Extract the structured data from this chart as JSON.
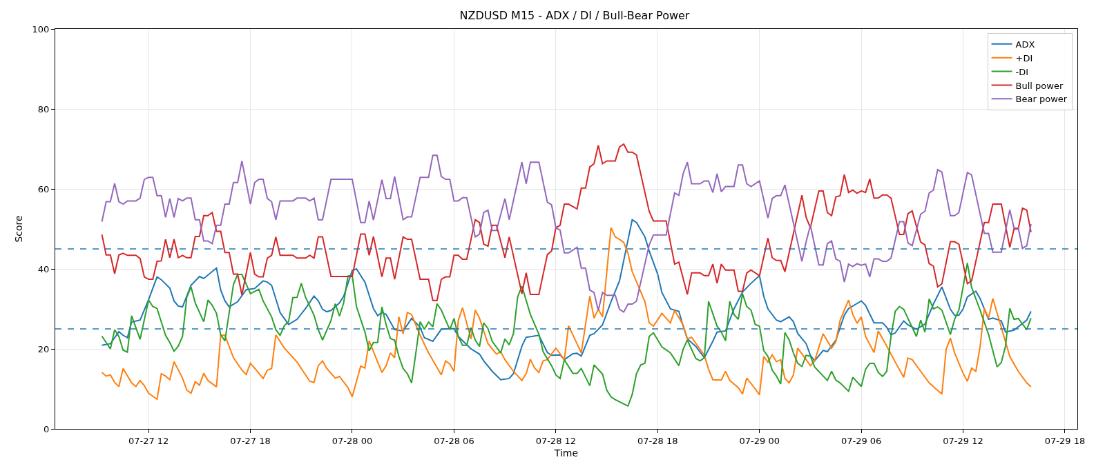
{
  "chart_data": {
    "type": "line",
    "title": "NZDUSD M15 - ADX / DI / Bull-Bear Power",
    "xlabel": "Time",
    "ylabel": "Score",
    "xlim": [
      "--07-27T06:30",
      "--07-29T18:44"
    ],
    "xticks": [
      {
        "value": "--07-27T12:00",
        "label": "07-27 12"
      },
      {
        "value": "--07-27T18:00",
        "label": "07-27 18"
      },
      {
        "value": "--07-28T00:00",
        "label": "07-28 00"
      },
      {
        "value": "--07-28T06:00",
        "label": "07-28 06"
      },
      {
        "value": "--07-28T12:00",
        "label": "07-28 12"
      },
      {
        "value": "--07-28T18:00",
        "label": "07-28 18"
      },
      {
        "value": "--07-29T00:00",
        "label": "07-29 00"
      },
      {
        "value": "--07-29T06:00",
        "label": "07-29 06"
      },
      {
        "value": "--07-29T12:00",
        "label": "07-29 12"
      },
      {
        "value": "--07-29T18:00",
        "label": "07-29 18"
      }
    ],
    "ylim": [
      0,
      100
    ],
    "yticks": [
      0,
      20,
      40,
      60,
      80,
      100
    ],
    "grid": true,
    "legend": "top right",
    "ref_lines": [
      {
        "axis": "y",
        "value": 45,
        "color": "#1f77b4",
        "line_style": "dashed"
      },
      {
        "axis": "y",
        "value": 25,
        "color": "#1f77b4",
        "line_style": "dashed"
      }
    ],
    "series": [
      {
        "name": "ADX",
        "color": "#1f77b4",
        "x": [
          "--07-27T09:15",
          "--07-27T09:45",
          "--07-27T10:15",
          "--07-27T10:30",
          "--07-27T10:45",
          "--07-27T11:00",
          "--07-27T11:30",
          "--07-27T12:00",
          "--07-27T12:30",
          "--07-27T12:45",
          "--07-27T13:15",
          "--07-27T13:30",
          "--07-27T13:45",
          "--07-27T14:00",
          "--07-27T14:30",
          "--07-27T15:00",
          "--07-27T15:15",
          "--07-27T16:00",
          "--07-27T16:15",
          "--07-27T16:30",
          "--07-27T16:45",
          "--07-27T17:15",
          "--07-27T17:45",
          "--07-27T18:15",
          "--07-27T18:45",
          "--07-27T19:00",
          "--07-27T19:15",
          "--07-27T19:45",
          "--07-27T20:15",
          "--07-27T20:45",
          "--07-27T21:15",
          "--07-27T21:45",
          "--07-27T22:00",
          "--07-27T22:15",
          "--07-27T22:30",
          "--07-27T22:45",
          "--07-27T23:15",
          "--07-27T23:30",
          "--07-28T00:00",
          "--07-28T00:15",
          "--07-28T00:45",
          "--07-28T01:15",
          "--07-28T01:30",
          "--07-28T01:45",
          "--07-28T02:00",
          "--07-28T02:30",
          "--07-28T03:00",
          "--07-28T03:30",
          "--07-28T04:00",
          "--07-28T04:15",
          "--07-28T04:45",
          "--07-28T05:15",
          "--07-28T06:00",
          "--07-28T06:15",
          "--07-28T07:00",
          "--07-28T07:30",
          "--07-28T07:45",
          "--07-28T08:15",
          "--07-28T08:45",
          "--07-28T09:15",
          "--07-28T09:30",
          "--07-28T10:00",
          "--07-28T10:15",
          "--07-28T11:00",
          "--07-28T11:30",
          "--07-28T11:45",
          "--07-28T12:15",
          "--07-28T12:30",
          "--07-28T13:00",
          "--07-28T13:15",
          "--07-28T13:30",
          "--07-28T14:00",
          "--07-28T14:15",
          "--07-28T14:45",
          "--07-28T15:15",
          "--07-28T15:45",
          "--07-28T16:30",
          "--07-28T16:45",
          "--07-28T17:15",
          "--07-28T17:30",
          "--07-28T18:00",
          "--07-28T18:15",
          "--07-28T18:45",
          "--07-28T19:15",
          "--07-28T19:30",
          "--07-28T19:45",
          "--07-28T20:15",
          "--07-28T20:45",
          "--07-28T21:15",
          "--07-28T21:30",
          "--07-28T22:00",
          "--07-28T22:30",
          "--07-28T23:00",
          "--07-28T23:30",
          "--07-29T00:00",
          "--07-29T00:15",
          "--07-29T00:30",
          "--07-29T01:00",
          "--07-29T01:15",
          "--07-29T01:45",
          "--07-29T02:00",
          "--07-29T02:15",
          "--07-29T02:45",
          "--07-29T03:00",
          "--07-29T03:15",
          "--07-29T03:45",
          "--07-29T04:00",
          "--07-29T04:30",
          "--07-29T05:00",
          "--07-29T05:15",
          "--07-29T06:00",
          "--07-29T06:15",
          "--07-29T06:45",
          "--07-29T07:15",
          "--07-29T07:30",
          "--07-29T07:45",
          "--07-29T08:00",
          "--07-29T08:30",
          "--07-29T08:45",
          "--07-29T09:15",
          "--07-29T09:45",
          "--07-29T10:15",
          "--07-29T10:45",
          "--07-29T11:15",
          "--07-29T11:30",
          "--07-29T11:45",
          "--07-29T12:00",
          "--07-29T12:15",
          "--07-29T12:45",
          "--07-29T13:00",
          "--07-29T13:30",
          "--07-29T13:45",
          "--07-29T14:15",
          "--07-29T14:30",
          "--07-29T15:00",
          "--07-29T15:45",
          "--07-29T16:00"
        ],
        "values": [
          20.9,
          21.3,
          24.3,
          23.4,
          22.8,
          26.7,
          27.2,
          32.3,
          38.0,
          37.3,
          35.2,
          32.0,
          30.7,
          30.5,
          35.9,
          38.1,
          37.6,
          40.2,
          34.7,
          32.0,
          30.5,
          31.8,
          34.8,
          35.1,
          37.0,
          36.7,
          35.9,
          29.1,
          26.1,
          27.4,
          30.1,
          33.2,
          32.0,
          29.9,
          29.3,
          29.6,
          31.5,
          33.2,
          39.6,
          40.0,
          36.7,
          30.1,
          28.3,
          29.1,
          28.6,
          24.8,
          24.5,
          27.6,
          25.4,
          22.8,
          21.9,
          24.9,
          25.1,
          23.1,
          20.0,
          18.7,
          17.0,
          14.4,
          12.3,
          12.6,
          13.8,
          20.7,
          22.9,
          23.4,
          19.1,
          18.4,
          18.5,
          17.3,
          18.8,
          18.9,
          18.2,
          23.4,
          23.8,
          26.0,
          31.8,
          37.0,
          52.3,
          51.6,
          48.0,
          44.5,
          38.7,
          34.1,
          30.0,
          29.4,
          25.7,
          22.5,
          20.6,
          17.8,
          21.9,
          24.2,
          24.5,
          30.0,
          34.2,
          36.4,
          38.3,
          33.2,
          30.0,
          27.2,
          26.8,
          28.0,
          26.8,
          23.9,
          21.3,
          18.4,
          17.0,
          19.6,
          19.3,
          22.2,
          28.4,
          30.1,
          32.0,
          30.9,
          26.5,
          26.5,
          25.4,
          23.5,
          24.0,
          27.0,
          26.0,
          24.9,
          26.2,
          31.2,
          35.5,
          29.9,
          28.4,
          28.4,
          30.0,
          33.0,
          34.4,
          32.6,
          27.4,
          27.7,
          27.0,
          24.2,
          24.7,
          27.2,
          29.4
        ]
      },
      {
        "name": "+DI",
        "color": "#ff7f0e",
        "x": [
          "--07-27T09:15",
          "--07-27T09:30",
          "--07-27T09:45",
          "--07-27T10:00",
          "--07-27T10:15",
          "--07-27T10:30",
          "--07-27T11:00",
          "--07-27T11:15",
          "--07-27T11:30",
          "--07-27T11:45",
          "--07-27T12:00",
          "--07-27T12:30",
          "--07-27T12:45",
          "--07-27T13:00",
          "--07-27T13:15",
          "--07-27T13:30",
          "--07-27T14:00",
          "--07-27T14:15",
          "--07-27T14:30",
          "--07-27T14:45",
          "--07-27T15:00",
          "--07-27T15:15",
          "--07-27T15:30",
          "--07-27T16:00",
          "--07-27T16:15",
          "--07-27T16:30",
          "--07-27T17:00",
          "--07-27T17:30",
          "--07-27T17:45",
          "--07-27T18:00",
          "--07-27T18:15",
          "--07-27T18:45",
          "--07-27T19:00",
          "--07-27T19:15",
          "--07-27T19:30",
          "--07-27T20:00",
          "--07-27T20:45",
          "--07-27T21:15",
          "--07-27T21:30",
          "--07-27T21:45",
          "--07-27T22:00",
          "--07-27T22:15",
          "--07-27T22:30",
          "--07-27T23:00",
          "--07-27T23:15",
          "--07-27T23:45",
          "--07-28T00:00",
          "--07-28T00:30",
          "--07-28T00:45",
          "--07-28T01:00",
          "--07-28T01:30",
          "--07-28T01:45",
          "--07-28T02:00",
          "--07-28T02:15",
          "--07-28T02:30",
          "--07-28T02:45",
          "--07-28T03:00",
          "--07-28T03:15",
          "--07-28T03:30",
          "--07-28T04:00",
          "--07-28T04:30",
          "--07-28T05:15",
          "--07-28T05:30",
          "--07-28T05:45",
          "--07-28T06:00",
          "--07-28T06:15",
          "--07-28T06:30",
          "--07-28T07:00",
          "--07-28T07:15",
          "--07-28T07:30",
          "--07-28T08:00",
          "--07-28T08:30",
          "--07-28T08:45",
          "--07-28T09:00",
          "--07-28T09:30",
          "--07-28T10:00",
          "--07-28T10:15",
          "--07-28T10:30",
          "--07-28T10:45",
          "--07-28T11:00",
          "--07-28T11:15",
          "--07-28T11:30",
          "--07-28T12:00",
          "--07-28T12:30",
          "--07-28T12:45",
          "--07-28T13:30",
          "--07-28T14:00",
          "--07-28T14:15",
          "--07-28T14:30",
          "--07-28T14:45",
          "--07-28T15:15",
          "--07-28T15:30",
          "--07-28T15:45",
          "--07-28T16:00",
          "--07-28T16:15",
          "--07-28T16:30",
          "--07-28T17:15",
          "--07-28T17:30",
          "--07-28T17:45",
          "--07-28T18:15",
          "--07-28T18:45",
          "--07-28T19:00",
          "--07-28T19:30",
          "--07-28T19:45",
          "--07-28T20:00",
          "--07-28T20:30",
          "--07-28T20:45",
          "--07-28T21:00",
          "--07-28T21:15",
          "--07-28T21:45",
          "--07-28T22:00",
          "--07-28T22:15",
          "--07-28T22:45",
          "--07-28T23:00",
          "--07-28T23:15",
          "--07-28T23:45",
          "--07-29T00:00",
          "--07-29T00:15",
          "--07-29T00:30",
          "--07-29T00:45",
          "--07-29T01:00",
          "--07-29T01:15",
          "--07-29T01:30",
          "--07-29T01:45",
          "--07-29T02:00",
          "--07-29T02:15",
          "--07-29T02:45",
          "--07-29T03:00",
          "--07-29T03:15",
          "--07-29T03:45",
          "--07-29T04:15",
          "--07-29T04:30",
          "--07-29T04:45",
          "--07-29T05:15",
          "--07-29T05:30",
          "--07-29T05:45",
          "--07-29T06:00",
          "--07-29T06:15",
          "--07-29T06:45",
          "--07-29T07:00",
          "--07-29T07:30",
          "--07-29T08:00",
          "--07-29T08:30",
          "--07-29T08:45",
          "--07-29T09:00",
          "--07-29T09:30",
          "--07-29T10:00",
          "--07-29T10:30",
          "--07-29T10:45",
          "--07-29T11:00",
          "--07-29T11:15",
          "--07-29T11:30",
          "--07-29T12:00",
          "--07-29T12:15",
          "--07-29T12:30",
          "--07-29T12:45",
          "--07-29T13:00",
          "--07-29T13:15",
          "--07-29T13:30",
          "--07-29T13:45",
          "--07-29T14:15",
          "--07-29T14:45",
          "--07-29T15:15",
          "--07-29T15:45",
          "--07-29T16:00"
        ],
        "values": [
          14.1,
          13.2,
          13.5,
          11.6,
          10.6,
          15.1,
          11.5,
          10.6,
          12.1,
          10.8,
          8.9,
          7.4,
          13.8,
          13.2,
          12.3,
          16.8,
          12.7,
          9.7,
          8.9,
          11.8,
          10.9,
          13.9,
          12.1,
          10.5,
          23.4,
          23.4,
          17.8,
          14.7,
          13.6,
          16.4,
          15.2,
          12.6,
          14.7,
          15.1,
          23.5,
          20.2,
          16.7,
          13.5,
          11.9,
          11.6,
          15.8,
          17.0,
          15.1,
          12.7,
          13.1,
          10.3,
          8.0,
          15.7,
          15.2,
          22.0,
          16.7,
          14.1,
          15.8,
          19.0,
          17.8,
          28.0,
          23.8,
          29.1,
          28.6,
          23.4,
          19.0,
          13.5,
          17.0,
          16.2,
          14.4,
          27.1,
          30.3,
          22.5,
          29.7,
          27.7,
          21.3,
          18.7,
          19.3,
          17.3,
          14.4,
          12.1,
          13.8,
          17.4,
          15.2,
          14.1,
          17.0,
          17.3,
          20.2,
          17.3,
          25.8,
          19.0,
          33.2,
          27.7,
          29.9,
          28.0,
          50.3,
          48.0,
          47.4,
          46.6,
          43.9,
          39.3,
          31.8,
          26.5,
          25.7,
          28.9,
          26.5,
          29.6,
          26.0,
          22.5,
          22.9,
          19.9,
          18.4,
          14.9,
          12.3,
          12.2,
          14.4,
          12.1,
          10.3,
          8.7,
          12.7,
          10.0,
          8.5,
          18.1,
          16.7,
          18.5,
          16.8,
          17.3,
          12.6,
          11.5,
          13.5,
          20.2,
          17.3,
          15.8,
          17.0,
          23.8,
          20.2,
          21.8,
          27.1,
          32.2,
          28.6,
          26.4,
          28.0,
          23.1,
          19.1,
          24.5,
          20.7,
          16.7,
          12.9,
          17.7,
          17.3,
          14.4,
          11.5,
          9.6,
          8.7,
          19.9,
          22.7,
          19.0,
          13.9,
          11.9,
          15.2,
          14.4,
          20.5,
          30.1,
          27.7,
          32.6,
          25.4,
          18.1,
          14.4,
          11.5,
          10.5
        ]
      },
      {
        "name": "-DI",
        "color": "#2ca02c",
        "x": [
          "--07-27T09:15",
          "--07-27T09:45",
          "--07-27T10:00",
          "--07-27T10:15",
          "--07-27T10:30",
          "--07-27T10:45",
          "--07-27T11:00",
          "--07-27T11:30",
          "--07-27T12:00",
          "--07-27T12:15",
          "--07-27T12:30",
          "--07-27T13:00",
          "--07-27T13:15",
          "--07-27T13:30",
          "--07-27T13:45",
          "--07-27T14:00",
          "--07-27T14:15",
          "--07-27T14:30",
          "--07-27T14:45",
          "--07-27T15:15",
          "--07-27T15:30",
          "--07-27T15:45",
          "--07-27T16:00",
          "--07-27T16:15",
          "--07-27T16:30",
          "--07-27T17:00",
          "--07-27T17:15",
          "--07-27T17:30",
          "--07-27T18:00",
          "--07-27T18:30",
          "--07-27T18:45",
          "--07-27T19:15",
          "--07-27T19:30",
          "--07-27T19:45",
          "--07-27T20:00",
          "--07-27T20:15",
          "--07-27T20:30",
          "--07-27T20:45",
          "--07-27T21:00",
          "--07-27T21:15",
          "--07-27T21:45",
          "--07-27T22:00",
          "--07-27T22:15",
          "--07-27T22:45",
          "--07-27T23:00",
          "--07-27T23:15",
          "--07-27T23:30",
          "--07-27T23:45",
          "--07-28T00:00",
          "--07-28T00:15",
          "--07-28T00:45",
          "--07-28T01:00",
          "--07-28T01:15",
          "--07-28T01:30",
          "--07-28T01:45",
          "--07-28T02:00",
          "--07-28T02:15",
          "--07-28T02:30",
          "--07-28T02:45",
          "--07-28T03:00",
          "--07-28T03:15",
          "--07-28T03:30",
          "--07-28T03:45",
          "--07-28T04:00",
          "--07-28T04:15",
          "--07-28T04:30",
          "--07-28T04:45",
          "--07-28T05:00",
          "--07-28T05:15",
          "--07-28T05:45",
          "--07-28T06:00",
          "--07-28T06:15",
          "--07-28T06:30",
          "--07-28T06:45",
          "--07-28T07:00",
          "--07-28T07:15",
          "--07-28T07:30",
          "--07-28T07:45",
          "--07-28T08:00",
          "--07-28T08:15",
          "--07-28T08:45",
          "--07-28T09:00",
          "--07-28T09:15",
          "--07-28T09:30",
          "--07-28T09:45",
          "--07-28T10:00",
          "--07-28T10:30",
          "--07-28T11:00",
          "--07-28T11:15",
          "--07-28T11:45",
          "--07-28T12:00",
          "--07-28T12:15",
          "--07-28T12:30",
          "--07-28T13:00",
          "--07-28T13:15",
          "--07-28T13:30",
          "--07-28T14:00",
          "--07-28T14:15",
          "--07-28T14:45",
          "--07-28T15:00",
          "--07-28T15:15",
          "--07-28T15:30",
          "--07-28T16:15",
          "--07-28T16:30",
          "--07-28T16:45",
          "--07-28T17:00",
          "--07-28T17:15",
          "--07-28T17:30",
          "--07-28T17:45",
          "--07-28T18:15",
          "--07-28T18:45",
          "--07-28T19:15",
          "--07-28T19:30",
          "--07-28T19:45",
          "--07-28T20:15",
          "--07-28T20:30",
          "--07-28T20:45",
          "--07-28T21:00",
          "--07-28T21:30",
          "--07-28T21:45",
          "--07-28T22:00",
          "--07-28T22:15",
          "--07-28T22:30",
          "--07-28T22:45",
          "--07-28T23:00",
          "--07-28T23:15",
          "--07-28T23:30",
          "--07-28T23:45",
          "--07-29T00:00",
          "--07-29T00:15",
          "--07-29T00:30",
          "--07-29T00:45",
          "--07-29T01:00",
          "--07-29T01:15",
          "--07-29T01:30",
          "--07-29T01:45",
          "--07-29T02:00",
          "--07-29T02:15",
          "--07-29T02:30",
          "--07-29T02:45",
          "--07-29T03:00",
          "--07-29T03:15",
          "--07-29T04:00",
          "--07-29T04:15",
          "--07-29T04:30",
          "--07-29T04:45",
          "--07-29T05:15",
          "--07-29T05:30",
          "--07-29T06:00",
          "--07-29T06:15",
          "--07-29T06:30",
          "--07-29T06:45",
          "--07-29T07:00",
          "--07-29T07:15",
          "--07-29T07:30",
          "--07-29T07:45",
          "--07-29T08:00",
          "--07-29T08:15",
          "--07-29T08:30",
          "--07-29T09:15",
          "--07-29T09:30",
          "--07-29T09:45",
          "--07-29T10:00",
          "--07-29T10:15",
          "--07-29T10:30",
          "--07-29T10:45",
          "--07-29T11:15",
          "--07-29T11:30",
          "--07-29T11:45",
          "--07-29T12:00",
          "--07-29T12:15",
          "--07-29T12:30",
          "--07-29T13:00",
          "--07-29T13:30",
          "--07-29T14:00",
          "--07-29T14:15",
          "--07-29T14:30",
          "--07-29T14:45",
          "--07-29T15:00",
          "--07-29T15:15",
          "--07-29T15:45",
          "--07-29T16:00"
        ],
        "values": [
          23.2,
          20.0,
          24.8,
          23.1,
          19.7,
          19.2,
          28.3,
          22.4,
          32.2,
          30.6,
          30.1,
          23.4,
          21.6,
          19.4,
          20.7,
          23.1,
          32.9,
          35.5,
          31.5,
          26.8,
          32.2,
          30.9,
          28.9,
          23.5,
          22.0,
          36.1,
          38.6,
          38.6,
          33.8,
          34.9,
          32.0,
          28.0,
          24.8,
          23.4,
          25.8,
          26.8,
          32.8,
          32.9,
          36.4,
          32.9,
          28.4,
          24.8,
          22.2,
          27.1,
          31.3,
          28.2,
          31.6,
          38.2,
          38.4,
          30.6,
          24.2,
          19.5,
          21.6,
          21.6,
          30.5,
          26.0,
          22.6,
          22.2,
          18.1,
          15.1,
          13.8,
          11.5,
          19.0,
          26.8,
          24.9,
          26.7,
          25.5,
          31.3,
          29.7,
          24.8,
          27.6,
          23.1,
          20.9,
          20.9,
          25.3,
          22.2,
          20.6,
          26.5,
          25.1,
          21.9,
          19.0,
          22.5,
          21.0,
          23.8,
          33.0,
          35.7,
          28.6,
          23.7,
          19.3,
          15.8,
          13.5,
          12.6,
          17.3,
          13.9,
          13.9,
          15.1,
          10.8,
          16.0,
          13.7,
          9.7,
          8.0,
          7.3,
          5.7,
          8.6,
          13.8,
          16.0,
          16.4,
          23.1,
          24.0,
          20.5,
          19.0,
          15.8,
          19.9,
          22.2,
          17.6,
          17.0,
          17.8,
          31.9,
          25.7,
          24.2,
          22.0,
          31.9,
          28.6,
          27.4,
          33.8,
          30.6,
          29.7,
          26.1,
          25.7,
          19.6,
          18.1,
          14.7,
          13.2,
          11.2,
          24.1,
          22.2,
          19.0,
          16.4,
          15.6,
          18.4,
          18.2,
          15.5,
          12.1,
          14.4,
          12.2,
          11.5,
          9.4,
          12.9,
          10.6,
          14.9,
          16.4,
          16.4,
          14.1,
          13.1,
          14.4,
          23.1,
          29.4,
          30.6,
          29.9,
          23.1,
          27.2,
          24.2,
          32.5,
          30.0,
          30.5,
          29.7,
          23.6,
          27.4,
          29.7,
          35.5,
          41.5,
          35.4,
          29.7,
          23.6,
          15.5,
          16.6,
          20.7,
          30.1,
          27.4,
          27.6,
          24.8,
          27.7
        ]
      },
      {
        "name": "Bull power",
        "color": "#d62728",
        "x": [
          "--07-27T09:15",
          "--07-27T09:30",
          "--07-27T09:45",
          "--07-27T10:00",
          "--07-27T10:15",
          "--07-27T10:30",
          "--07-27T10:45",
          "--07-27T11:15",
          "--07-27T11:30",
          "--07-27T11:45",
          "--07-27T12:00",
          "--07-27T12:15",
          "--07-27T12:30",
          "--07-27T12:45",
          "--07-27T13:00",
          "--07-27T13:15",
          "--07-27T13:30",
          "--07-27T13:45",
          "--07-27T14:00",
          "--07-27T14:15",
          "--07-27T14:30",
          "--07-27T14:45",
          "--07-27T15:00",
          "--07-27T15:15",
          "--07-27T15:30",
          "--07-27T15:45",
          "--07-27T16:00",
          "--07-27T16:15",
          "--07-27T16:30",
          "--07-27T16:45",
          "--07-27T17:00",
          "--07-27T17:15",
          "--07-27T17:30",
          "--07-27T18:00",
          "--07-27T18:15",
          "--07-27T18:30",
          "--07-27T18:45",
          "--07-27T19:00",
          "--07-27T19:15",
          "--07-27T19:30",
          "--07-27T19:45",
          "--07-27T20:30",
          "--07-27T20:45",
          "--07-27T21:15",
          "--07-27T21:30",
          "--07-27T21:45",
          "--07-27T22:00",
          "--07-27T22:15",
          "--07-27T22:45",
          "--07-28T00:00",
          "--07-28T00:30",
          "--07-28T00:45",
          "--07-28T01:00",
          "--07-28T01:15",
          "--07-28T01:45",
          "--07-28T02:00",
          "--07-28T02:15",
          "--07-28T02:30",
          "--07-28T03:00",
          "--07-28T03:15",
          "--07-28T03:30",
          "--07-28T04:00",
          "--07-28T04:30",
          "--07-28T04:45",
          "--07-28T05:00",
          "--07-28T05:15",
          "--07-28T05:30",
          "--07-28T05:45",
          "--07-28T06:00",
          "--07-28T06:15",
          "--07-28T06:30",
          "--07-28T06:45",
          "--07-28T07:15",
          "--07-28T07:30",
          "--07-28T07:45",
          "--07-28T08:00",
          "--07-28T08:15",
          "--07-28T08:30",
          "--07-28T09:00",
          "--07-28T09:15",
          "--07-28T10:00",
          "--07-28T10:15",
          "--07-28T10:30",
          "--07-28T11:00",
          "--07-28T11:30",
          "--07-28T11:45",
          "--07-28T12:00",
          "--07-28T12:15",
          "--07-28T12:30",
          "--07-28T12:45",
          "--07-28T13:15",
          "--07-28T13:30",
          "--07-28T13:45",
          "--07-28T14:00",
          "--07-28T14:15",
          "--07-28T14:30",
          "--07-28T14:45",
          "--07-28T15:00",
          "--07-28T15:30",
          "--07-28T15:45",
          "--07-28T16:00",
          "--07-28T16:15",
          "--07-28T16:30",
          "--07-28T16:45",
          "--07-28T17:30",
          "--07-28T17:45",
          "--07-28T18:30",
          "--07-28T19:00",
          "--07-28T19:15",
          "--07-28T19:45",
          "--07-28T20:00",
          "--07-28T20:30",
          "--07-28T20:45",
          "--07-28T21:00",
          "--07-28T21:15",
          "--07-28T21:30",
          "--07-28T21:45",
          "--07-28T22:00",
          "--07-28T22:30",
          "--07-28T22:45",
          "--07-28T23:00",
          "--07-28T23:15",
          "--07-28T23:30",
          "--07-29T00:00",
          "--07-29T00:30",
          "--07-29T00:45",
          "--07-29T01:00",
          "--07-29T01:15",
          "--07-29T01:30",
          "--07-29T02:30",
          "--07-29T02:45",
          "--07-29T03:00",
          "--07-29T03:30",
          "--07-29T03:45",
          "--07-29T04:00",
          "--07-29T04:15",
          "--07-29T04:30",
          "--07-29T04:45",
          "--07-29T05:00",
          "--07-29T05:15",
          "--07-29T05:30",
          "--07-29T05:45",
          "--07-29T06:00",
          "--07-29T06:15",
          "--07-29T06:30",
          "--07-29T06:45",
          "--07-29T07:00",
          "--07-29T07:15",
          "--07-29T07:30",
          "--07-29T07:45",
          "--07-29T08:15",
          "--07-29T08:30",
          "--07-29T08:45",
          "--07-29T09:00",
          "--07-29T09:30",
          "--07-29T09:45",
          "--07-29T10:00",
          "--07-29T10:15",
          "--07-29T10:30",
          "--07-29T10:45",
          "--07-29T11:15",
          "--07-29T11:30",
          "--07-29T11:45",
          "--07-29T12:15",
          "--07-29T12:30",
          "--07-29T13:15",
          "--07-29T13:30",
          "--07-29T13:45",
          "--07-29T14:15",
          "--07-29T14:45",
          "--07-29T15:00",
          "--07-29T15:15",
          "--07-29T15:30",
          "--07-29T15:45",
          "--07-29T16:00"
        ],
        "values": [
          48.6,
          43.5,
          43.5,
          38.8,
          43.5,
          43.9,
          43.4,
          43.4,
          42.6,
          38.0,
          37.4,
          37.4,
          41.9,
          42.0,
          47.4,
          42.8,
          47.4,
          42.8,
          43.4,
          42.8,
          42.8,
          48.1,
          48.1,
          53.3,
          53.3,
          54.1,
          49.4,
          49.4,
          44.1,
          44.1,
          38.7,
          38.7,
          33.5,
          44.1,
          38.7,
          38.0,
          38.0,
          42.7,
          43.4,
          48.0,
          43.4,
          43.4,
          42.7,
          42.7,
          43.4,
          42.7,
          48.0,
          48.0,
          38.1,
          38.1,
          48.7,
          48.7,
          43.4,
          48.1,
          38.0,
          42.7,
          42.7,
          37.4,
          48.0,
          47.4,
          47.4,
          37.4,
          37.4,
          32.1,
          32.1,
          37.4,
          38.0,
          38.0,
          43.4,
          43.4,
          42.4,
          42.4,
          52.3,
          51.6,
          46.2,
          45.7,
          50.9,
          50.9,
          42.8,
          48.0,
          33.8,
          39.0,
          33.6,
          33.6,
          43.6,
          44.5,
          50.3,
          50.9,
          56.2,
          56.2,
          55.0,
          60.2,
          60.2,
          65.5,
          66.3,
          70.9,
          66.3,
          67.0,
          67.0,
          70.5,
          71.2,
          69.2,
          69.2,
          68.5,
          54.4,
          52.0,
          52.0,
          41.2,
          41.7,
          33.6,
          39.0,
          39.0,
          38.3,
          38.3,
          41.2,
          36.4,
          41.2,
          39.7,
          39.7,
          34.4,
          34.4,
          39.0,
          39.7,
          38.3,
          47.7,
          42.8,
          42.1,
          42.1,
          39.3,
          58.4,
          52.9,
          50.3,
          59.5,
          59.5,
          54.1,
          53.3,
          58.0,
          58.3,
          63.6,
          59.1,
          59.7,
          58.9,
          59.5,
          59.1,
          62.5,
          57.7,
          57.7,
          58.5,
          58.5,
          57.7,
          48.6,
          48.6,
          53.8,
          54.5,
          46.7,
          46.0,
          41.3,
          40.7,
          35.5,
          36.3,
          46.8,
          46.8,
          46.2,
          36.3,
          37.0,
          51.6,
          51.6,
          56.2,
          56.2,
          45.4,
          50.0,
          50.0,
          55.2,
          54.7,
          49.2
        ]
      },
      {
        "name": "Bear power",
        "color": "#9467bd",
        "x": [
          "--07-27T09:15",
          "--07-27T09:30",
          "--07-27T09:45",
          "--07-27T10:00",
          "--07-27T10:15",
          "--07-27T10:30",
          "--07-27T10:45",
          "--07-27T11:15",
          "--07-27T11:30",
          "--07-27T11:45",
          "--07-27T12:00",
          "--07-27T12:15",
          "--07-27T12:30",
          "--07-27T12:45",
          "--07-27T13:00",
          "--07-27T13:15",
          "--07-27T13:30",
          "--07-27T13:45",
          "--07-27T14:00",
          "--07-27T14:15",
          "--07-27T14:30",
          "--07-27T14:45",
          "--07-27T15:00",
          "--07-27T15:15",
          "--07-27T15:30",
          "--07-27T15:45",
          "--07-27T16:00",
          "--07-27T16:15",
          "--07-27T16:30",
          "--07-27T16:45",
          "--07-27T17:00",
          "--07-27T17:15",
          "--07-27T17:30",
          "--07-27T18:00",
          "--07-27T18:15",
          "--07-27T18:30",
          "--07-27T18:45",
          "--07-27T19:00",
          "--07-27T19:15",
          "--07-27T19:30",
          "--07-27T19:45",
          "--07-27T20:30",
          "--07-27T20:45",
          "--07-27T21:15",
          "--07-27T21:30",
          "--07-27T21:45",
          "--07-27T22:00",
          "--07-27T22:15",
          "--07-27T22:45",
          "--07-28T00:00",
          "--07-28T00:30",
          "--07-28T00:45",
          "--07-28T01:00",
          "--07-28T01:15",
          "--07-28T01:45",
          "--07-28T02:00",
          "--07-28T02:15",
          "--07-28T02:30",
          "--07-28T03:00",
          "--07-28T03:15",
          "--07-28T03:30",
          "--07-28T04:00",
          "--07-28T04:30",
          "--07-28T04:45",
          "--07-28T05:00",
          "--07-28T05:15",
          "--07-28T05:30",
          "--07-28T05:45",
          "--07-28T06:00",
          "--07-28T06:15",
          "--07-28T06:30",
          "--07-28T06:45",
          "--07-28T07:15",
          "--07-28T07:30",
          "--07-28T07:45",
          "--07-28T08:00",
          "--07-28T08:15",
          "--07-28T08:30",
          "--07-28T09:00",
          "--07-28T09:15",
          "--07-28T10:00",
          "--07-28T10:15",
          "--07-28T10:30",
          "--07-28T11:00",
          "--07-28T11:30",
          "--07-28T11:45",
          "--07-28T12:00",
          "--07-28T12:15",
          "--07-28T12:30",
          "--07-28T12:45",
          "--07-28T13:15",
          "--07-28T13:30",
          "--07-28T13:45",
          "--07-28T14:00",
          "--07-28T14:15",
          "--07-28T14:30",
          "--07-28T14:45",
          "--07-28T15:00",
          "--07-28T15:30",
          "--07-28T15:45",
          "--07-28T16:00",
          "--07-28T16:15",
          "--07-28T16:30",
          "--07-28T16:45",
          "--07-28T17:30",
          "--07-28T17:45",
          "--07-28T18:30",
          "--07-28T19:00",
          "--07-28T19:15",
          "--07-28T19:30",
          "--07-28T19:45",
          "--07-28T20:00",
          "--07-28T20:30",
          "--07-28T20:45",
          "--07-28T21:00",
          "--07-28T21:15",
          "--07-28T21:30",
          "--07-28T21:45",
          "--07-28T22:00",
          "--07-28T22:30",
          "--07-28T22:45",
          "--07-28T23:00",
          "--07-28T23:15",
          "--07-28T23:30",
          "--07-29T00:00",
          "--07-29T00:30",
          "--07-29T00:45",
          "--07-29T01:00",
          "--07-29T01:15",
          "--07-29T01:30",
          "--07-29T02:30",
          "--07-29T02:45",
          "--07-29T03:00",
          "--07-29T03:30",
          "--07-29T03:45",
          "--07-29T04:00",
          "--07-29T04:15",
          "--07-29T04:30",
          "--07-29T04:45",
          "--07-29T05:00",
          "--07-29T05:15",
          "--07-29T05:30",
          "--07-29T05:45",
          "--07-29T06:00",
          "--07-29T06:15",
          "--07-29T06:30",
          "--07-29T06:45",
          "--07-29T07:00",
          "--07-29T07:15",
          "--07-29T07:30",
          "--07-29T07:45",
          "--07-29T08:15",
          "--07-29T08:30",
          "--07-29T08:45",
          "--07-29T09:00",
          "--07-29T09:30",
          "--07-29T09:45",
          "--07-29T10:00",
          "--07-29T10:15",
          "--07-29T10:30",
          "--07-29T10:45",
          "--07-29T11:15",
          "--07-29T11:30",
          "--07-29T11:45",
          "--07-29T12:15",
          "--07-29T12:30",
          "--07-29T13:15",
          "--07-29T13:30",
          "--07-29T13:45",
          "--07-29T14:15",
          "--07-29T14:45",
          "--07-29T15:00",
          "--07-29T15:15",
          "--07-29T15:30",
          "--07-29T15:45",
          "--07-29T16:00"
        ],
        "values": [
          51.8,
          56.8,
          56.8,
          61.4,
          56.8,
          56.2,
          57.0,
          57.0,
          57.7,
          62.4,
          62.9,
          62.9,
          58.3,
          58.3,
          52.9,
          57.6,
          52.9,
          57.6,
          57.0,
          57.7,
          57.7,
          52.3,
          52.3,
          47.0,
          47.0,
          46.3,
          50.9,
          50.9,
          56.2,
          56.2,
          61.6,
          61.6,
          67.0,
          56.2,
          61.6,
          62.4,
          62.4,
          57.6,
          56.8,
          52.3,
          57.0,
          57.0,
          57.7,
          57.7,
          57.0,
          57.7,
          52.3,
          52.3,
          62.4,
          62.4,
          51.6,
          51.6,
          57.0,
          52.2,
          62.3,
          57.6,
          57.6,
          63.1,
          52.3,
          53.0,
          53.0,
          62.9,
          62.9,
          68.4,
          68.4,
          63.1,
          62.4,
          62.4,
          57.0,
          57.0,
          57.8,
          57.8,
          48.0,
          48.7,
          54.1,
          54.7,
          49.6,
          49.6,
          57.6,
          52.3,
          66.7,
          61.3,
          66.7,
          66.7,
          56.7,
          56.0,
          50.3,
          49.7,
          44.0,
          44.0,
          45.4,
          40.2,
          40.2,
          34.7,
          34.1,
          29.6,
          34.1,
          33.4,
          33.4,
          29.9,
          29.2,
          31.2,
          31.2,
          31.9,
          46.0,
          48.5,
          48.5,
          59.0,
          58.4,
          63.8,
          66.7,
          61.3,
          61.3,
          62.0,
          62.0,
          59.1,
          63.8,
          59.3,
          60.6,
          60.6,
          66.0,
          66.0,
          61.3,
          60.6,
          62.0,
          52.7,
          57.6,
          58.3,
          58.3,
          61.0,
          41.9,
          46.8,
          50.9,
          41.0,
          41.0,
          46.3,
          47.0,
          42.5,
          41.9,
          36.7,
          41.2,
          40.6,
          41.3,
          40.9,
          41.2,
          38.0,
          42.5,
          42.5,
          41.9,
          41.9,
          42.7,
          51.8,
          51.8,
          46.5,
          45.8,
          53.7,
          54.4,
          59.0,
          59.7,
          64.8,
          64.2,
          53.3,
          53.3,
          54.1,
          64.1,
          63.5,
          48.9,
          48.9,
          44.2,
          44.2,
          54.8,
          50.2,
          50.2,
          45.1,
          45.8,
          51.2
        ]
      }
    ]
  }
}
